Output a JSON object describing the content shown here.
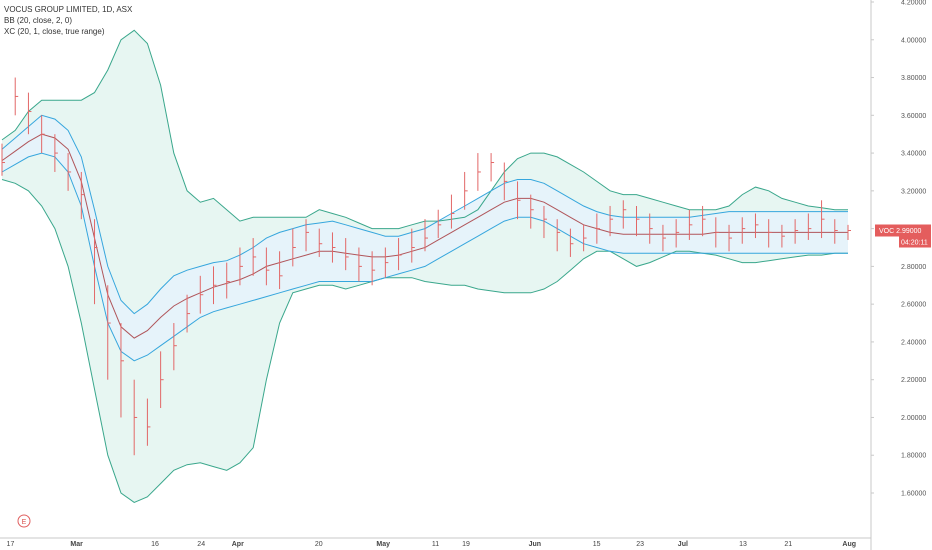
{
  "legend": {
    "symbol_line": "VOCUS GROUP LIMITED, 1D, ASX",
    "bb_line": "BB (20, close, 2, 0)",
    "kc_line": "XC (20, 1, close, true range)"
  },
  "price_badge": {
    "symbol": "VOC",
    "price": "2.99000",
    "countdown": "04:20:11",
    "color": "#e45d5d"
  },
  "event_marker": {
    "label": "E"
  },
  "colors": {
    "bb": "#3aa78c",
    "bb_fill": "#e4f5f1",
    "kc": "#36a6dd",
    "kc_fill": "#e5f3fb",
    "basis": "#b0555a",
    "candle": "#e26767",
    "grid": "#efefef",
    "axis": "#c9c9c9"
  },
  "chart_data": {
    "type": "line",
    "title": "VOCUS GROUP LIMITED, 1D, ASX",
    "xlabel": "",
    "ylabel": "",
    "ylim": [
      1.5,
      4.2
    ],
    "x_ticks": [
      "17",
      "Mar",
      "16",
      "24",
      "Apr",
      "20",
      "May",
      "11",
      "19",
      "Jun",
      "15",
      "23",
      "Jul",
      "13",
      "21",
      "Aug"
    ],
    "y_ticks": [
      "4.20000",
      "4.00000",
      "3.80000",
      "3.60000",
      "3.40000",
      "3.20000",
      "3.00000",
      "2.80000",
      "2.60000",
      "2.40000",
      "2.20000",
      "2.00000",
      "1.80000",
      "1.60000"
    ],
    "grid": false,
    "legend": "top-left",
    "x": [
      0,
      3,
      6,
      9,
      12,
      15,
      18,
      21,
      24,
      27,
      30,
      33,
      36,
      39,
      42,
      45,
      48,
      51,
      54,
      57,
      60,
      63,
      66,
      69,
      72,
      75,
      78,
      81,
      84,
      87,
      90,
      93,
      96,
      99,
      102,
      105,
      108,
      111,
      114,
      117,
      120,
      123,
      126,
      129,
      132,
      135,
      138,
      141,
      144,
      147,
      150,
      153,
      156,
      159,
      162,
      165,
      168,
      171,
      174,
      177,
      180,
      183,
      186,
      189,
      192
    ],
    "series": [
      {
        "name": "BB Upper",
        "values": [
          3.47,
          3.52,
          3.62,
          3.68,
          3.68,
          3.68,
          3.68,
          3.72,
          3.84,
          4.0,
          4.05,
          3.98,
          3.76,
          3.4,
          3.2,
          3.14,
          3.16,
          3.1,
          3.04,
          3.06,
          3.06,
          3.06,
          3.06,
          3.06,
          3.1,
          3.08,
          3.06,
          3.03,
          3.0,
          3.0,
          3.0,
          3.02,
          3.04,
          3.04,
          3.05,
          3.06,
          3.1,
          3.2,
          3.3,
          3.37,
          3.4,
          3.4,
          3.38,
          3.34,
          3.3,
          3.25,
          3.2,
          3.18,
          3.18,
          3.16,
          3.14,
          3.12,
          3.1,
          3.1,
          3.1,
          3.12,
          3.18,
          3.22,
          3.2,
          3.16,
          3.14,
          3.12,
          3.11,
          3.1,
          3.1
        ]
      },
      {
        "name": "BB Lower",
        "values": [
          3.26,
          3.24,
          3.2,
          3.12,
          3.0,
          2.8,
          2.5,
          2.15,
          1.8,
          1.6,
          1.55,
          1.58,
          1.65,
          1.72,
          1.75,
          1.76,
          1.74,
          1.72,
          1.76,
          1.84,
          2.2,
          2.5,
          2.66,
          2.68,
          2.7,
          2.7,
          2.68,
          2.7,
          2.72,
          2.74,
          2.74,
          2.74,
          2.72,
          2.71,
          2.7,
          2.7,
          2.68,
          2.67,
          2.66,
          2.66,
          2.66,
          2.68,
          2.72,
          2.78,
          2.84,
          2.88,
          2.88,
          2.84,
          2.8,
          2.82,
          2.85,
          2.88,
          2.88,
          2.87,
          2.86,
          2.84,
          2.82,
          2.82,
          2.83,
          2.84,
          2.85,
          2.86,
          2.86,
          2.87,
          2.87
        ]
      },
      {
        "name": "KC Upper",
        "values": [
          3.42,
          3.48,
          3.54,
          3.6,
          3.58,
          3.52,
          3.38,
          3.1,
          2.8,
          2.62,
          2.55,
          2.6,
          2.68,
          2.75,
          2.78,
          2.8,
          2.82,
          2.83,
          2.86,
          2.9,
          2.95,
          2.98,
          3.0,
          3.02,
          3.03,
          3.04,
          3.02,
          3.0,
          2.98,
          2.96,
          2.96,
          2.98,
          3.0,
          3.04,
          3.08,
          3.12,
          3.16,
          3.2,
          3.24,
          3.26,
          3.26,
          3.24,
          3.2,
          3.16,
          3.12,
          3.09,
          3.07,
          3.06,
          3.06,
          3.06,
          3.06,
          3.06,
          3.06,
          3.07,
          3.08,
          3.09,
          3.09,
          3.09,
          3.09,
          3.09,
          3.09,
          3.09,
          3.09,
          3.09,
          3.09
        ]
      },
      {
        "name": "KC Lower",
        "values": [
          3.3,
          3.34,
          3.38,
          3.4,
          3.38,
          3.3,
          3.12,
          2.8,
          2.5,
          2.35,
          2.3,
          2.33,
          2.38,
          2.43,
          2.48,
          2.53,
          2.56,
          2.58,
          2.6,
          2.62,
          2.64,
          2.66,
          2.68,
          2.7,
          2.72,
          2.72,
          2.72,
          2.72,
          2.72,
          2.74,
          2.76,
          2.78,
          2.8,
          2.84,
          2.88,
          2.92,
          2.96,
          3.0,
          3.04,
          3.06,
          3.06,
          3.04,
          3.0,
          2.96,
          2.92,
          2.9,
          2.88,
          2.87,
          2.87,
          2.87,
          2.87,
          2.87,
          2.87,
          2.87,
          2.87,
          2.87,
          2.87,
          2.87,
          2.87,
          2.87,
          2.87,
          2.87,
          2.87,
          2.87,
          2.87
        ]
      },
      {
        "name": "Basis",
        "values": [
          3.36,
          3.41,
          3.46,
          3.5,
          3.48,
          3.42,
          3.25,
          2.95,
          2.65,
          2.48,
          2.42,
          2.46,
          2.53,
          2.59,
          2.63,
          2.66,
          2.69,
          2.71,
          2.73,
          2.76,
          2.8,
          2.82,
          2.84,
          2.86,
          2.88,
          2.88,
          2.87,
          2.86,
          2.85,
          2.85,
          2.86,
          2.88,
          2.9,
          2.94,
          2.98,
          3.02,
          3.06,
          3.1,
          3.14,
          3.16,
          3.16,
          3.14,
          3.1,
          3.06,
          3.02,
          3.0,
          2.98,
          2.97,
          2.97,
          2.97,
          2.97,
          2.97,
          2.97,
          2.97,
          2.98,
          2.98,
          2.98,
          2.98,
          2.98,
          2.98,
          2.98,
          2.98,
          2.98,
          2.98,
          2.98
        ]
      }
    ],
    "ohlc": {
      "x": [
        0,
        3,
        6,
        9,
        12,
        15,
        18,
        21,
        24,
        27,
        30,
        33,
        36,
        39,
        42,
        45,
        48,
        51,
        54,
        57,
        60,
        63,
        66,
        69,
        72,
        75,
        78,
        81,
        84,
        87,
        90,
        93,
        96,
        99,
        102,
        105,
        108,
        111,
        114,
        117,
        120,
        123,
        126,
        129,
        132,
        135,
        138,
        141,
        144,
        147,
        150,
        153,
        156,
        159,
        162,
        165,
        168,
        171,
        174,
        177,
        180,
        183,
        186,
        189,
        192
      ],
      "close": [
        3.35,
        3.7,
        3.62,
        3.5,
        3.4,
        3.3,
        3.18,
        2.9,
        2.5,
        2.3,
        2.0,
        1.95,
        2.2,
        2.38,
        2.55,
        2.65,
        2.7,
        2.72,
        2.8,
        2.85,
        2.78,
        2.75,
        2.9,
        2.98,
        2.92,
        2.9,
        2.85,
        2.8,
        2.78,
        2.82,
        2.86,
        2.9,
        2.95,
        3.02,
        3.08,
        3.2,
        3.3,
        3.35,
        3.25,
        3.15,
        3.1,
        3.05,
        2.98,
        2.92,
        2.95,
        3.0,
        3.05,
        3.1,
        3.05,
        3.0,
        2.95,
        2.98,
        3.02,
        3.05,
        2.98,
        2.95,
        3.0,
        3.02,
        2.98,
        2.96,
        2.99,
        3.0,
        3.05,
        2.99,
        2.99
      ],
      "high": [
        3.45,
        3.8,
        3.72,
        3.6,
        3.5,
        3.4,
        3.3,
        3.05,
        2.7,
        2.5,
        2.2,
        2.1,
        2.35,
        2.5,
        2.65,
        2.75,
        2.8,
        2.82,
        2.9,
        2.95,
        2.9,
        2.88,
        3.0,
        3.05,
        3.0,
        2.98,
        2.95,
        2.9,
        2.88,
        2.9,
        2.95,
        3.0,
        3.05,
        3.1,
        3.18,
        3.3,
        3.4,
        3.4,
        3.35,
        3.25,
        3.18,
        3.12,
        3.05,
        3.0,
        3.02,
        3.08,
        3.12,
        3.15,
        3.12,
        3.08,
        3.02,
        3.05,
        3.1,
        3.12,
        3.06,
        3.02,
        3.06,
        3.08,
        3.05,
        3.02,
        3.05,
        3.08,
        3.15,
        3.05,
        3.02
      ],
      "low": [
        3.28,
        3.6,
        3.5,
        3.4,
        3.3,
        3.2,
        3.05,
        2.6,
        2.2,
        2.0,
        1.8,
        1.85,
        2.05,
        2.25,
        2.45,
        2.55,
        2.6,
        2.63,
        2.7,
        2.75,
        2.7,
        2.68,
        2.8,
        2.88,
        2.85,
        2.82,
        2.78,
        2.72,
        2.7,
        2.74,
        2.78,
        2.82,
        2.88,
        2.95,
        3.0,
        3.1,
        3.2,
        3.25,
        3.15,
        3.05,
        3.0,
        2.95,
        2.88,
        2.85,
        2.88,
        2.92,
        2.96,
        3.0,
        2.96,
        2.92,
        2.88,
        2.9,
        2.94,
        2.96,
        2.9,
        2.88,
        2.92,
        2.95,
        2.9,
        2.9,
        2.92,
        2.94,
        2.95,
        2.92,
        2.94
      ]
    }
  }
}
